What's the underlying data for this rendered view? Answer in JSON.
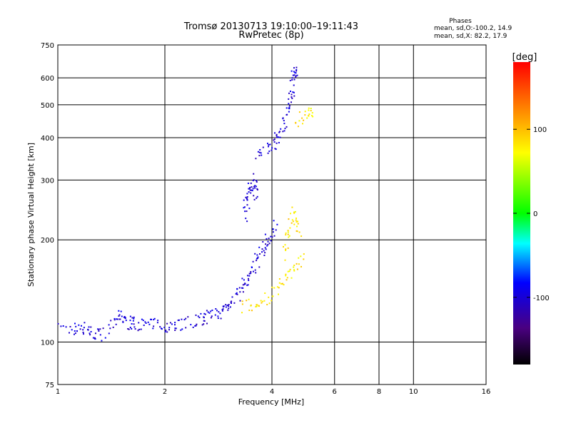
{
  "chart_data": {
    "type": "scatter",
    "title": "Tromsø 20130713 19:10:00–19:11:43",
    "subtitle": "RwPretec (8p)",
    "xlabel": "Frequency [MHz]",
    "ylabel": "Stationary phase Virtual Height [km]",
    "x_scale": "log",
    "y_scale": "log",
    "xlim": [
      1,
      16
    ],
    "ylim": [
      75,
      750
    ],
    "x_ticks": [
      1,
      2,
      4,
      6,
      8,
      10,
      16
    ],
    "x_tick_labels": [
      "1",
      "2",
      "4",
      "6",
      "8",
      "10",
      "16"
    ],
    "y_ticks": [
      75,
      100,
      200,
      300,
      400,
      500,
      600,
      750
    ],
    "y_tick_labels": [
      "75",
      "100",
      "200",
      "300",
      "400",
      "500",
      "600",
      "750"
    ],
    "grid": true,
    "phase_box": {
      "title": "Phases",
      "line_o": "mean, sd,O:-100.2, 14.9",
      "line_x": "mean, sd,X:  82.2, 17.9"
    },
    "colorbar": {
      "label": "[deg]",
      "min": -180,
      "max": 180,
      "ticks": [
        100,
        0,
        -100
      ],
      "tick_labels": [
        "100",
        "0",
        "-100"
      ]
    },
    "series": [
      {
        "mode": "O",
        "phase_mean": -100.2,
        "phase_sd": 14.9,
        "segments": [
          {
            "f": [
              1.02,
              1.1,
              1.15,
              1.2,
              1.25,
              1.3,
              1.35
            ],
            "h": [
              109,
              109,
              110,
              110,
              106,
              105,
              106
            ]
          },
          {
            "f": [
              1.4,
              1.45,
              1.5,
              1.55,
              1.6,
              1.65,
              1.7,
              1.8,
              1.9,
              2.0,
              2.1,
              2.2,
              2.3
            ],
            "h": [
              108,
              114,
              119,
              117,
              113,
              114,
              113,
              113,
              112,
              112,
              112,
              113,
              114
            ]
          },
          {
            "f": [
              2.4,
              2.5,
              2.6,
              2.7,
              2.8,
              2.9,
              3.0,
              3.1,
              3.2,
              3.3,
              3.4,
              3.5,
              3.6,
              3.7,
              3.8,
              3.9,
              4.0,
              4.1
            ],
            "h": [
              115,
              116,
              117,
              119,
              121,
              124,
              128,
              133,
              138,
              145,
              152,
              160,
              170,
              180,
              190,
              200,
              210,
              220
            ]
          },
          {
            "f": [
              3.35,
              3.4,
              3.45,
              3.5,
              3.55,
              3.6,
              3.62
            ],
            "h": [
              230,
              255,
              275,
              290,
              300,
              280,
              260
            ]
          },
          {
            "f": [
              3.6,
              3.8,
              4.0,
              4.1,
              4.2,
              4.3,
              4.4,
              4.5,
              4.55,
              4.6,
              4.65,
              4.7
            ],
            "h": [
              360,
              370,
              380,
              390,
              410,
              440,
              470,
              510,
              550,
              590,
              620,
              640
            ]
          }
        ]
      },
      {
        "mode": "X",
        "phase_mean": 82.2,
        "phase_sd": 17.9,
        "segments": [
          {
            "f": [
              3.3,
              3.5,
              3.7,
              3.9,
              4.1,
              4.3,
              4.5,
              4.7,
              4.9
            ],
            "h": [
              127,
              128,
              130,
              135,
              142,
              150,
              160,
              170,
              180
            ]
          },
          {
            "f": [
              4.3,
              4.4,
              4.5,
              4.6,
              4.7,
              4.8
            ],
            "h": [
              180,
              200,
              220,
              240,
              230,
              200
            ]
          },
          {
            "f": [
              4.7,
              4.9,
              5.1,
              5.2
            ],
            "h": [
              430,
              460,
              480,
              470
            ]
          }
        ]
      }
    ]
  }
}
